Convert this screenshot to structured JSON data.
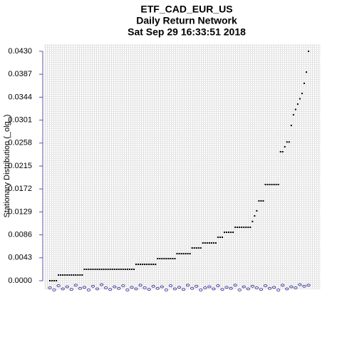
{
  "chart_data": {
    "type": "scatter",
    "title": "ETF_CAD_EUR_US",
    "subtitle": [
      "Daily Return Network",
      "Sat Sep 29 16:33:51 2018"
    ],
    "y_label": "Stationary Distribution (_olg_)",
    "ylim": [
      0,
      0.043
    ],
    "yticks": [
      {
        "value": 0,
        "label": "0.0000"
      },
      0.0043,
      0.0086,
      0.0129,
      0.0172,
      0.0215,
      0.0258,
      0.0301,
      0.0344,
      0.0387,
      {
        "value": 0.043,
        "label": "0.0430"
      }
    ],
    "grid": true,
    "series": [
      {
        "color": "#000000",
        "values": [
          0,
          0,
          0,
          0,
          0.00107,
          0.00107,
          0.00107,
          0.00107,
          0.00107,
          0.00107,
          0.00107,
          0.00107,
          0.00107,
          0.00107,
          0.00107,
          0.00107,
          0.00214,
          0.00214,
          0.00214,
          0.00214,
          0.00214,
          0.00214,
          0.00214,
          0.00214,
          0.00214,
          0.00214,
          0.00214,
          0.00214,
          0.00214,
          0.00214,
          0.00214,
          0.00214,
          0.00214,
          0.00214,
          0.00214,
          0.00214,
          0.00214,
          0.00214,
          0.00214,
          0.00214,
          0.00307,
          0.00307,
          0.00307,
          0.00307,
          0.00307,
          0.00307,
          0.00307,
          0.00307,
          0.00307,
          0.00307,
          0.00414,
          0.00414,
          0.00414,
          0.00414,
          0.00414,
          0.00414,
          0.00414,
          0.00414,
          0.00414,
          0.00507,
          0.00507,
          0.00507,
          0.00507,
          0.00507,
          0.00507,
          0.00507,
          0.00614,
          0.00614,
          0.00614,
          0.00614,
          0.00614,
          0.00708,
          0.00708,
          0.00708,
          0.00708,
          0.00708,
          0.00708,
          0.00708,
          0.00815,
          0.00815,
          0.00815,
          0.00908,
          0.00908,
          0.00908,
          0.00908,
          0.00908,
          0.01002,
          0.01002,
          0.01002,
          0.01002,
          0.01002,
          0.01002,
          0.01002,
          0.01002,
          0.0111,
          0.01215,
          0.0131,
          0.01496,
          0.01496,
          0.01496,
          0.01803,
          0.01803,
          0.01803,
          0.01803,
          0.01803,
          0.01803,
          0.01803,
          0.02417,
          0.02417,
          0.0251,
          0.026,
          0.026,
          0.0291,
          0.0311,
          0.0321,
          0.0331,
          0.0341,
          0.0351,
          0.037,
          0.0391,
          0.043
        ]
      },
      {
        "color": "#1a1a8c",
        "values": [
          -0.0008,
          -0.0012,
          -0.0004,
          -0.001,
          -0.0006,
          -0.0011,
          -0.0003,
          -0.0009,
          -0.0007,
          -0.0012,
          -0.0005,
          -0.001,
          -0.0002,
          -0.0008,
          -0.0011,
          -0.0006,
          -0.0009,
          -0.0004,
          -0.0012,
          -0.0007,
          -0.001,
          -0.0003,
          -0.0008,
          -0.0011,
          -0.0005,
          -0.0009,
          -0.0006,
          -0.0012,
          -0.0004,
          -0.001,
          -0.0007,
          -0.0011,
          -0.0003,
          -0.0009,
          -0.0005,
          -0.0012,
          -0.0008,
          -0.0006,
          -0.001,
          -0.0004,
          -0.0011,
          -0.0007,
          -0.0009,
          -0.0003,
          -0.0012,
          -0.0006,
          -0.001,
          -0.0005,
          -0.0008,
          -0.0011,
          -0.0004,
          -0.0009,
          -0.0007,
          -0.0012,
          -0.0003,
          -0.001,
          -0.0006,
          -0.0008,
          -0.0002,
          -0.0005,
          -0.0003
        ]
      }
    ]
  }
}
